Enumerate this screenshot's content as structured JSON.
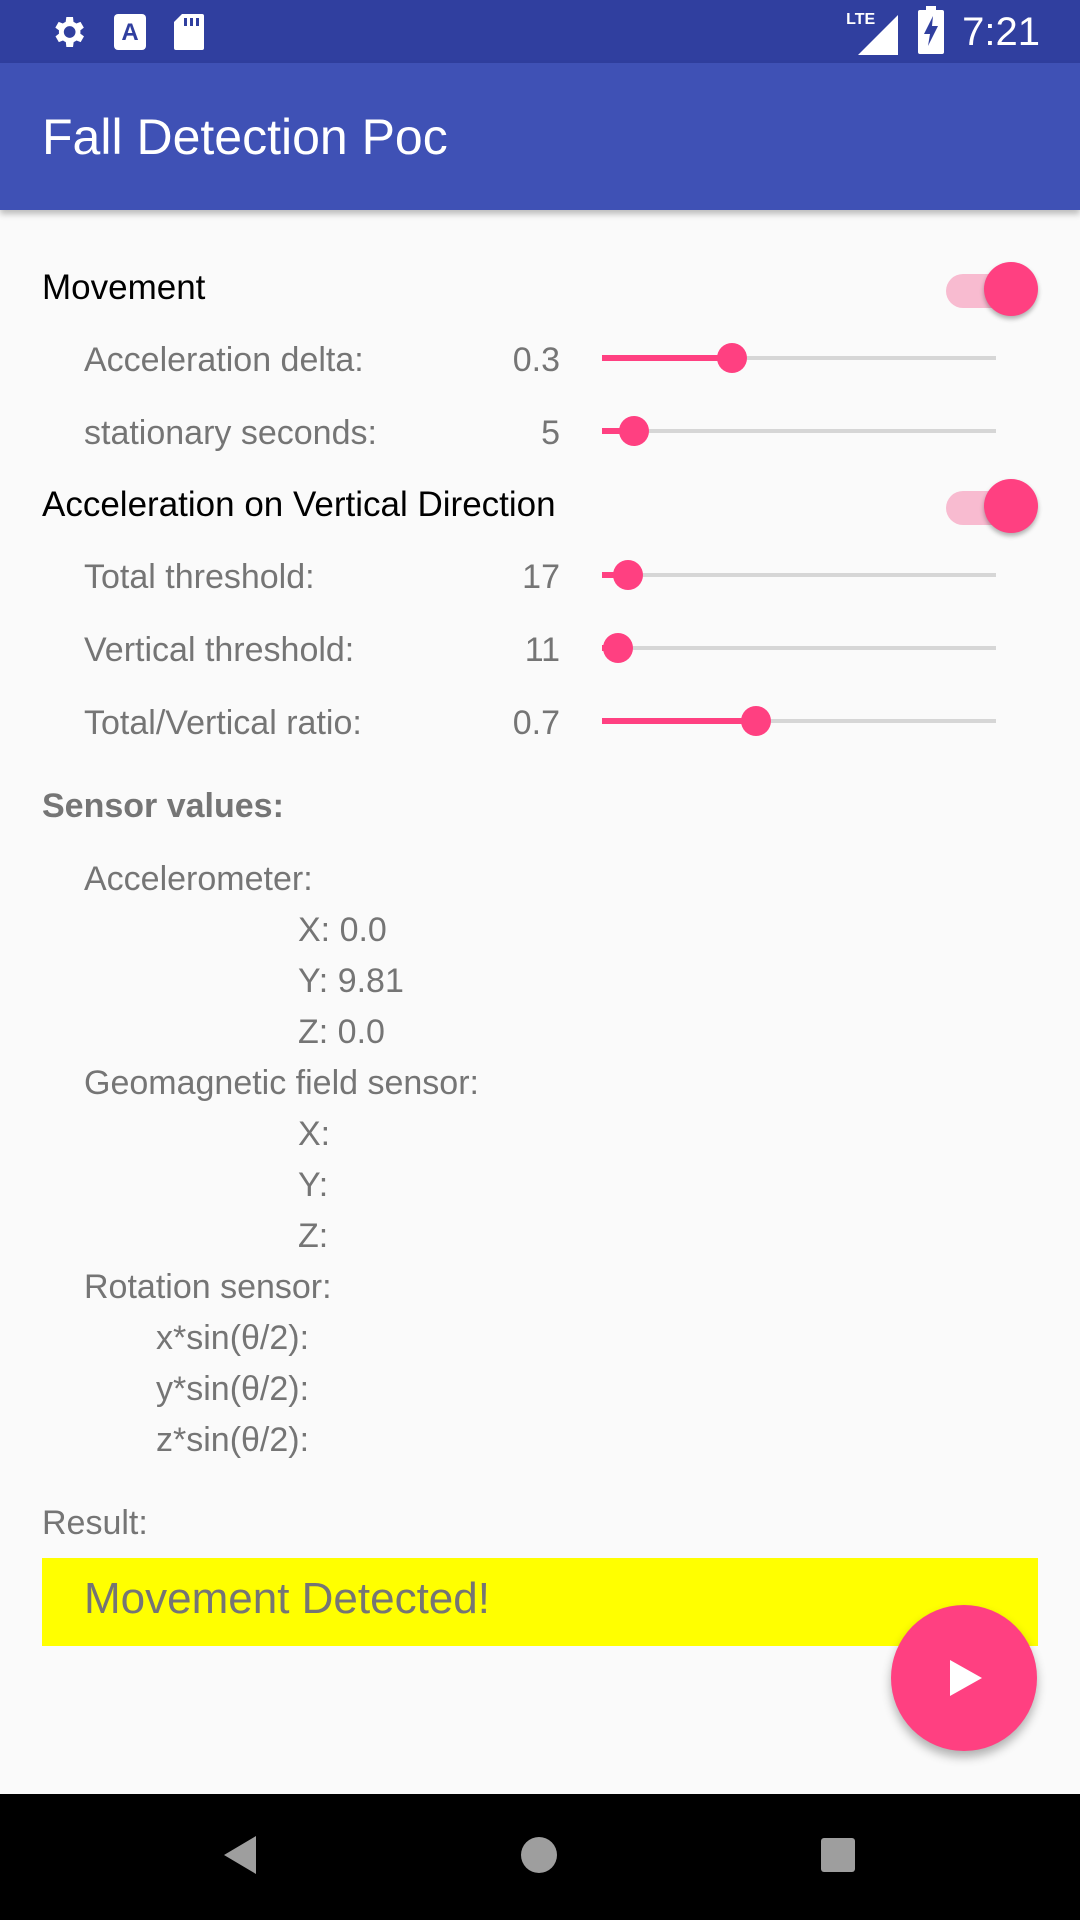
{
  "status_bar": {
    "time": "7:21",
    "network_label": "LTE",
    "icons": [
      "settings-icon",
      "text-a-icon",
      "sd-card-icon",
      "lte-signal-icon",
      "battery-charging-icon"
    ]
  },
  "app_bar": {
    "title": "Fall Detection Poc"
  },
  "movement": {
    "label": "Movement",
    "enabled": true,
    "rows": [
      {
        "label": "Acceleration delta:",
        "value": "0.3",
        "slider_fraction": 0.33
      },
      {
        "label": "stationary seconds:",
        "value": "5",
        "slider_fraction": 0.08
      }
    ]
  },
  "vertical": {
    "label": "Acceleration on Vertical Direction",
    "enabled": true,
    "rows": [
      {
        "label": "Total threshold:",
        "value": "17",
        "slider_fraction": 0.065
      },
      {
        "label": "Vertical threshold:",
        "value": "11",
        "slider_fraction": 0.04
      },
      {
        "label": "Total/Vertical ratio:",
        "value": "0.7",
        "slider_fraction": 0.39
      }
    ]
  },
  "sensors": {
    "title": "Sensor values:",
    "accelerometer": {
      "label": "Accelerometer:",
      "x": "X: 0.0",
      "y": "Y: 9.81",
      "z": "Z: 0.0"
    },
    "geomagnetic": {
      "label": "Geomagnetic field sensor:",
      "x": "X:",
      "y": "Y:",
      "z": "Z:"
    },
    "rotation": {
      "label": "Rotation sensor:",
      "x": "x*sin(θ/2):",
      "y": "y*sin(θ/2):",
      "z": "z*sin(θ/2):"
    }
  },
  "result": {
    "label": "Result:",
    "text": "Movement Detected!",
    "highlight_color": "#ffff00"
  },
  "fab": {
    "icon": "play-icon",
    "color": "#ff4081"
  },
  "nav_bar": {
    "buttons": [
      "back-icon",
      "home-icon",
      "recents-icon"
    ]
  },
  "colors": {
    "primary": "#3f51b5",
    "primary_dark": "#303f9f",
    "accent": "#ff4081"
  }
}
